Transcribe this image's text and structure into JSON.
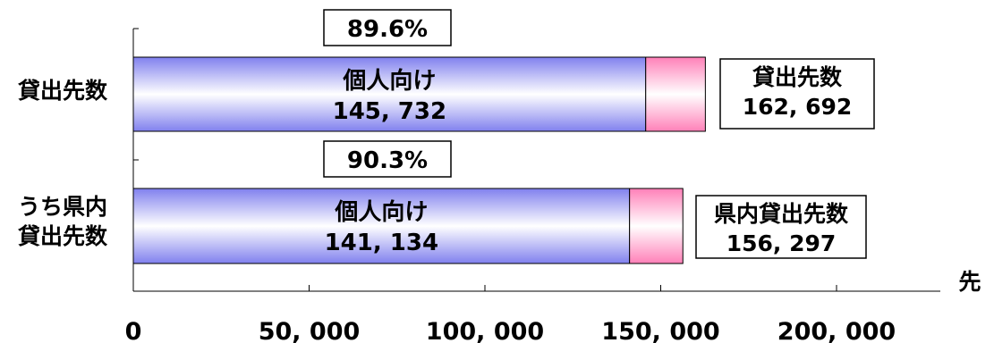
{
  "chart_data": {
    "type": "bar",
    "orientation": "horizontal",
    "stacked": true,
    "categories": [
      "貸出先数",
      "うち県内\n貸出先数"
    ],
    "series": [
      {
        "name": "個人向け",
        "values": [
          145732,
          141134
        ]
      },
      {
        "name": "",
        "values": [
          16960,
          15163
        ]
      }
    ],
    "totals": [
      162692,
      156297
    ],
    "percent_labels": [
      "89.6%",
      "90.3%"
    ],
    "segment_labels": [
      {
        "name": "個人向け",
        "value": "145, 732"
      },
      {
        "name": "個人向け",
        "value": "141, 134"
      }
    ],
    "total_labels": [
      {
        "name": "貸出先数",
        "value": "162, 692"
      },
      {
        "name": "県内貸出先数",
        "value": "156, 297"
      }
    ],
    "x_ticks": [
      0,
      50000,
      100000,
      150000,
      200000
    ],
    "x_tick_labels": [
      "0",
      "50, 000",
      "100, 000",
      "150, 000",
      "200, 000"
    ],
    "xlim": [
      0,
      230000
    ],
    "unit": "先",
    "grid": false,
    "legend": "none",
    "colors": {
      "individual_gradient": [
        "#7f7fee",
        "#ffffff"
      ],
      "other_gradient": [
        "#ff7fb5",
        "#ffffff"
      ]
    }
  }
}
